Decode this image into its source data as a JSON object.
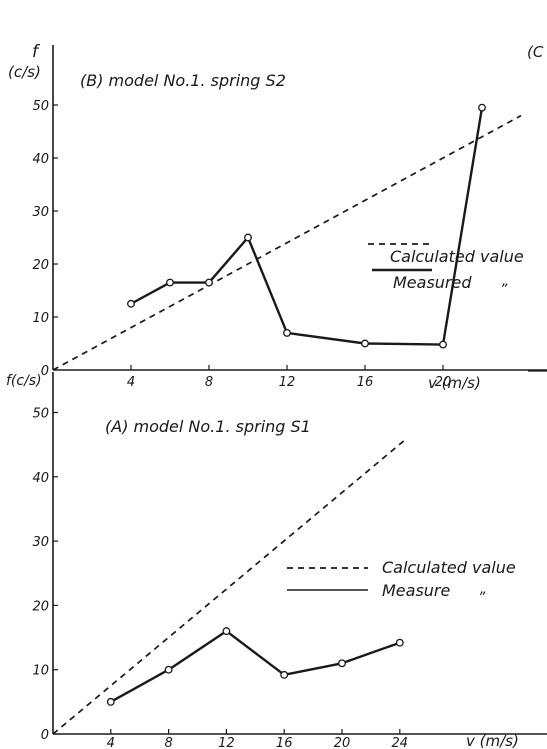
{
  "chart_data": [
    {
      "type": "line",
      "title": "(B) model No.1. spring S2",
      "ylabel": "f",
      "yunit": "(c/s)",
      "xlabel": "v (m/s)",
      "ylim": [
        0,
        50
      ],
      "xlim": [
        0,
        24
      ],
      "x_ticks": [
        "4",
        "8",
        "12",
        "16",
        "20"
      ],
      "y_ticks": [
        "0",
        "10",
        "20",
        "30",
        "40",
        "50"
      ],
      "series": [
        {
          "name": "Calculated value",
          "style": "dashed",
          "x": [
            0,
            24
          ],
          "y": [
            0,
            48
          ]
        },
        {
          "name": "Measured",
          "style": "solid",
          "x": [
            4,
            6,
            8,
            10,
            12,
            16,
            20,
            22
          ],
          "y": [
            12.5,
            16.5,
            16.5,
            25,
            7,
            5,
            4.8,
            49.5
          ]
        }
      ],
      "legend": [
        {
          "label": "Calculated value",
          "style": "dashed"
        },
        {
          "label": "Measured",
          "ditto": "”",
          "style": "solid"
        }
      ],
      "legend_position": "right",
      "partial_label": "(C"
    },
    {
      "type": "line",
      "title": "(A) model No.1. spring S1",
      "ylabel": "f(c/s)",
      "xlabel": "v (m/s)",
      "ylim": [
        0,
        50
      ],
      "xlim": [
        0,
        26
      ],
      "x_ticks": [
        "4",
        "8",
        "12",
        "16",
        "20",
        "24"
      ],
      "y_ticks": [
        "0",
        "10",
        "20",
        "30",
        "40",
        "50"
      ],
      "series": [
        {
          "name": "Calculated value",
          "style": "dashed",
          "x": [
            0,
            24.5
          ],
          "y": [
            0,
            46
          ]
        },
        {
          "name": "Measure",
          "style": "solid",
          "x": [
            4,
            8,
            12,
            16,
            20,
            24
          ],
          "y": [
            5,
            10,
            16,
            9.2,
            11,
            14.2
          ]
        }
      ],
      "legend": [
        {
          "label": "Calculated value",
          "style": "dashed"
        },
        {
          "label": "Measure",
          "ditto": "”",
          "style": "solid"
        }
      ],
      "legend_position": "right"
    }
  ]
}
